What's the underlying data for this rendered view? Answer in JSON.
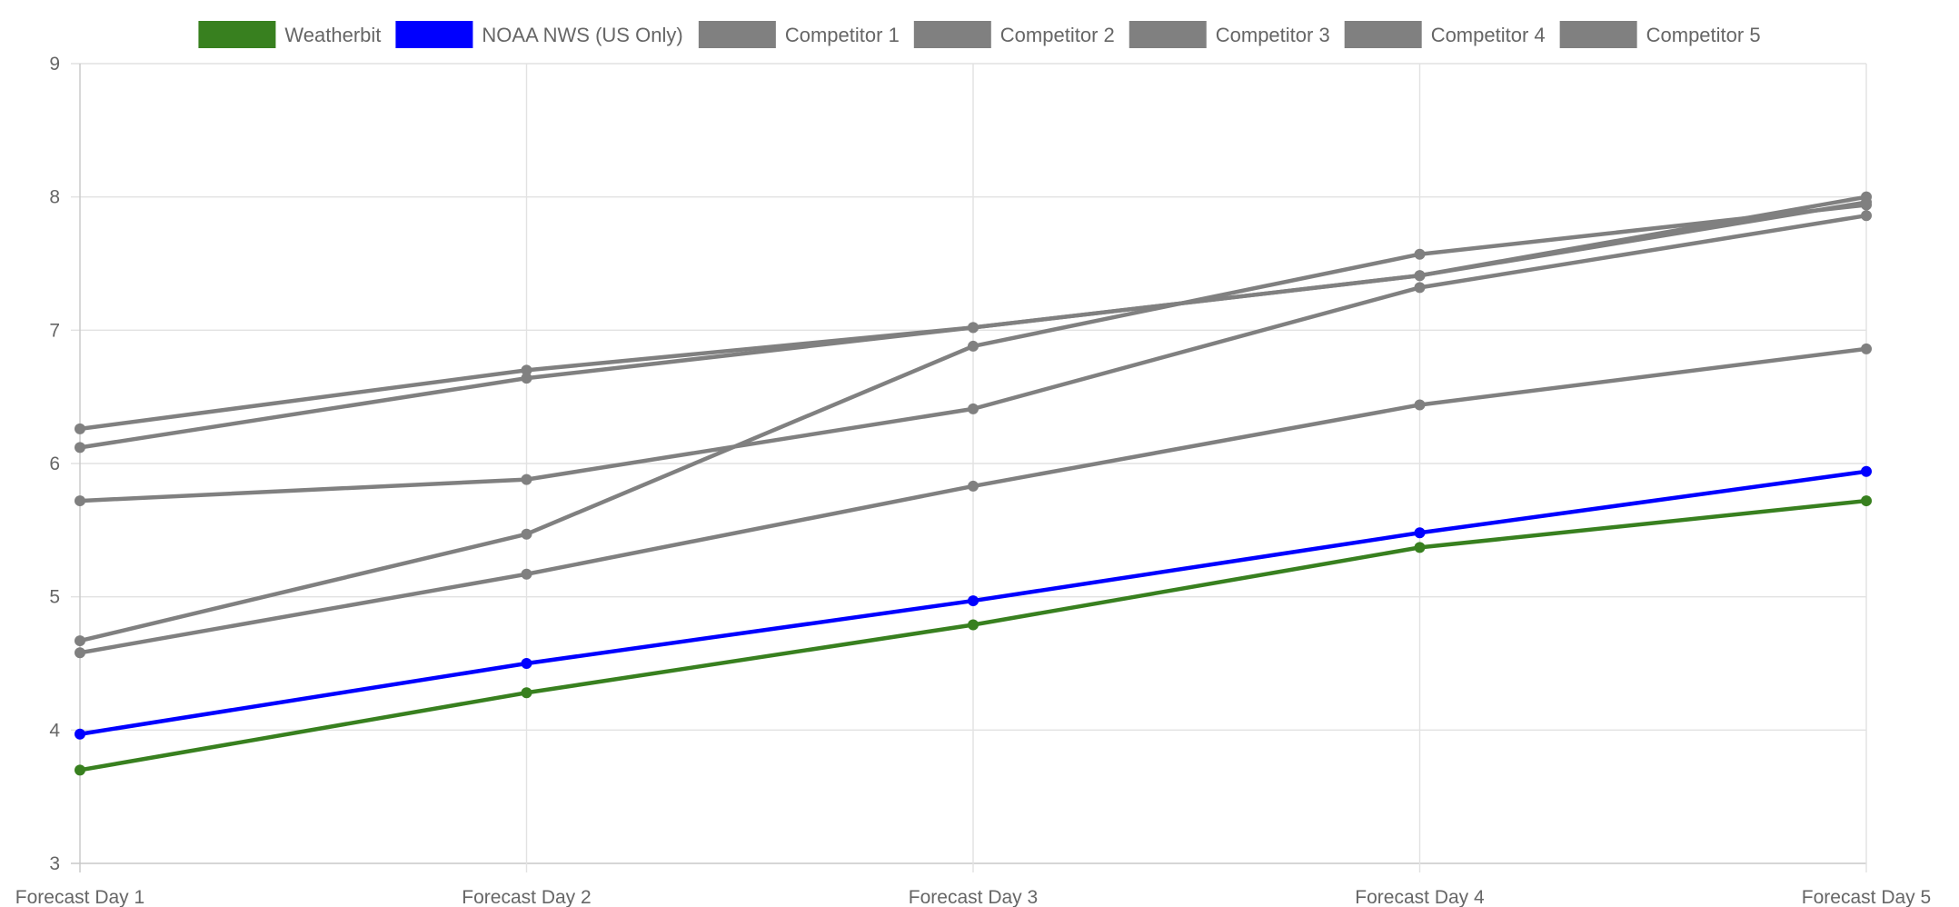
{
  "chart_data": {
    "type": "line",
    "title": "",
    "xlabel": "",
    "ylabel": "",
    "categories": [
      "Forecast Day 1",
      "Forecast Day 2",
      "Forecast Day 3",
      "Forecast Day 4",
      "Forecast Day 5"
    ],
    "ylim": [
      3,
      9
    ],
    "yticks": [
      "3",
      "4",
      "5",
      "6",
      "7",
      "8",
      "9"
    ],
    "grid": true,
    "legend_position": "top",
    "series": [
      {
        "name": "Weatherbit",
        "color": "#38801f",
        "values": [
          3.7,
          4.28,
          4.79,
          5.37,
          5.72
        ]
      },
      {
        "name": "NOAA NWS (US Only)",
        "color": "#0000ff",
        "values": [
          3.97,
          4.5,
          4.97,
          5.48,
          5.94
        ]
      },
      {
        "name": "Competitor 1",
        "color": "#808080",
        "values": [
          6.26,
          6.7,
          7.02,
          7.41,
          8.0
        ]
      },
      {
        "name": "Competitor 2",
        "color": "#808080",
        "values": [
          6.12,
          6.64,
          7.02,
          7.41,
          7.96
        ]
      },
      {
        "name": "Competitor 3",
        "color": "#808080",
        "values": [
          5.72,
          5.88,
          6.41,
          7.32,
          7.86
        ]
      },
      {
        "name": "Competitor 4",
        "color": "#808080",
        "values": [
          4.67,
          5.47,
          6.88,
          7.57,
          7.94
        ]
      },
      {
        "name": "Competitor 5",
        "color": "#808080",
        "values": [
          4.58,
          5.17,
          5.83,
          6.44,
          6.86
        ]
      }
    ]
  }
}
